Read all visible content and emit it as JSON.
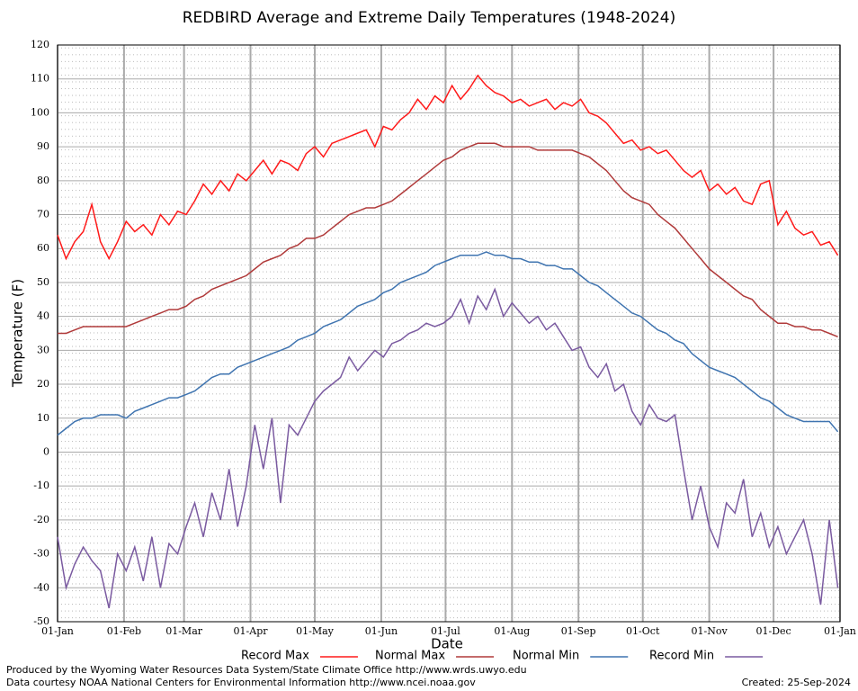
{
  "chart_data": {
    "type": "line",
    "title": "REDBIRD Average and Extreme Daily Temperatures (1948-2024)",
    "x_label": "Date",
    "y_label": "Temperature (F)",
    "footer_left": [
      "Produced by the Wyoming Water Resources Data System/State Climate Office http://www.wrds.uwyo.edu",
      "Data courtesy NOAA National Centers for Environmental Information http://www.ncei.noaa.gov"
    ],
    "footer_right": "Created:  25-Sep-2024",
    "x": [
      0,
      4,
      8,
      12,
      16,
      20,
      24,
      28,
      32,
      36,
      40,
      44,
      48,
      52,
      56,
      60,
      64,
      68,
      72,
      76,
      80,
      84,
      88,
      92,
      96,
      100,
      104,
      108,
      112,
      116,
      120,
      124,
      128,
      132,
      136,
      140,
      144,
      148,
      152,
      156,
      160,
      164,
      168,
      172,
      176,
      180,
      184,
      188,
      192,
      196,
      200,
      204,
      208,
      212,
      216,
      220,
      224,
      228,
      232,
      236,
      240,
      244,
      248,
      252,
      256,
      260,
      264,
      268,
      272,
      276,
      280,
      284,
      288,
      292,
      296,
      300,
      304,
      308,
      312,
      316,
      320,
      324,
      328,
      332,
      336,
      340,
      344,
      348,
      352,
      356,
      360,
      364
    ],
    "xlim": [
      0,
      365
    ],
    "xticks": [
      {
        "value": 0,
        "label": "01-Jan"
      },
      {
        "value": 31,
        "label": "01-Feb"
      },
      {
        "value": 59,
        "label": "01-Mar"
      },
      {
        "value": 90,
        "label": "01-Apr"
      },
      {
        "value": 120,
        "label": "01-May"
      },
      {
        "value": 151,
        "label": "01-Jun"
      },
      {
        "value": 181,
        "label": "01-Jul"
      },
      {
        "value": 212,
        "label": "01-Aug"
      },
      {
        "value": 243,
        "label": "01-Sep"
      },
      {
        "value": 273,
        "label": "01-Oct"
      },
      {
        "value": 304,
        "label": "01-Nov"
      },
      {
        "value": 334,
        "label": "01-Dec"
      },
      {
        "value": 365,
        "label": "01-Jan"
      }
    ],
    "ylim": [
      -50,
      120
    ],
    "yticks": [
      -50,
      -40,
      -30,
      -20,
      -10,
      0,
      10,
      20,
      30,
      40,
      50,
      60,
      70,
      80,
      90,
      100,
      110,
      120
    ],
    "grid": true,
    "series": [
      {
        "name": "Record Max",
        "color": "#ff1a1a",
        "values": [
          64,
          57,
          62,
          65,
          73,
          62,
          57,
          62,
          68,
          65,
          67,
          64,
          70,
          67,
          71,
          70,
          74,
          79,
          76,
          80,
          77,
          82,
          80,
          83,
          86,
          82,
          86,
          85,
          83,
          88,
          90,
          87,
          91,
          92,
          93,
          94,
          95,
          90,
          96,
          95,
          98,
          100,
          104,
          101,
          105,
          103,
          108,
          104,
          107,
          111,
          108,
          106,
          105,
          103,
          104,
          102,
          103,
          104,
          101,
          103,
          102,
          104,
          100,
          99,
          97,
          94,
          91,
          92,
          89,
          90,
          88,
          89,
          86,
          83,
          81,
          83,
          77,
          79,
          76,
          78,
          74,
          73,
          79,
          80,
          67,
          71,
          66,
          64,
          65,
          61,
          62,
          58
        ]
      },
      {
        "name": "Normal Max",
        "color": "#b03a3a",
        "values": [
          35,
          35,
          36,
          37,
          37,
          37,
          37,
          37,
          37,
          38,
          39,
          40,
          41,
          42,
          42,
          43,
          45,
          46,
          48,
          49,
          50,
          51,
          52,
          54,
          56,
          57,
          58,
          60,
          61,
          63,
          63,
          64,
          66,
          68,
          70,
          71,
          72,
          72,
          73,
          74,
          76,
          78,
          80,
          82,
          84,
          86,
          87,
          89,
          90,
          91,
          91,
          91,
          90,
          90,
          90,
          90,
          89,
          89,
          89,
          89,
          89,
          88,
          87,
          85,
          83,
          80,
          77,
          75,
          74,
          73,
          70,
          68,
          66,
          63,
          60,
          57,
          54,
          52,
          50,
          48,
          46,
          45,
          42,
          40,
          38,
          38,
          37,
          37,
          36,
          36,
          35,
          34
        ]
      },
      {
        "name": "Normal Min",
        "color": "#3f74b0",
        "values": [
          5,
          7,
          9,
          10,
          10,
          11,
          11,
          11,
          10,
          12,
          13,
          14,
          15,
          16,
          16,
          17,
          18,
          20,
          22,
          23,
          23,
          25,
          26,
          27,
          28,
          29,
          30,
          31,
          33,
          34,
          35,
          37,
          38,
          39,
          41,
          43,
          44,
          45,
          47,
          48,
          50,
          51,
          52,
          53,
          55,
          56,
          57,
          58,
          58,
          58,
          59,
          58,
          58,
          57,
          57,
          56,
          56,
          55,
          55,
          54,
          54,
          52,
          50,
          49,
          47,
          45,
          43,
          41,
          40,
          38,
          36,
          35,
          33,
          32,
          29,
          27,
          25,
          24,
          23,
          22,
          20,
          18,
          16,
          15,
          13,
          11,
          10,
          9,
          9,
          9,
          9,
          6
        ]
      },
      {
        "name": "Record Min",
        "color": "#7a5aa0",
        "values": [
          -25,
          -40,
          -33,
          -28,
          -32,
          -35,
          -46,
          -30,
          -35,
          -28,
          -38,
          -25,
          -40,
          -27,
          -30,
          -22,
          -15,
          -25,
          -12,
          -20,
          -5,
          -22,
          -10,
          8,
          -5,
          10,
          -15,
          8,
          5,
          10,
          15,
          18,
          20,
          22,
          28,
          24,
          27,
          30,
          28,
          32,
          33,
          35,
          36,
          38,
          37,
          38,
          40,
          45,
          38,
          46,
          42,
          48,
          40,
          44,
          41,
          38,
          40,
          36,
          38,
          34,
          30,
          31,
          25,
          22,
          26,
          18,
          20,
          12,
          8,
          14,
          10,
          9,
          11,
          -5,
          -20,
          -10,
          -22,
          -28,
          -15,
          -18,
          -8,
          -25,
          -18,
          -28,
          -22,
          -30,
          -25,
          -20,
          -30,
          -45,
          -20,
          -40
        ]
      }
    ]
  }
}
